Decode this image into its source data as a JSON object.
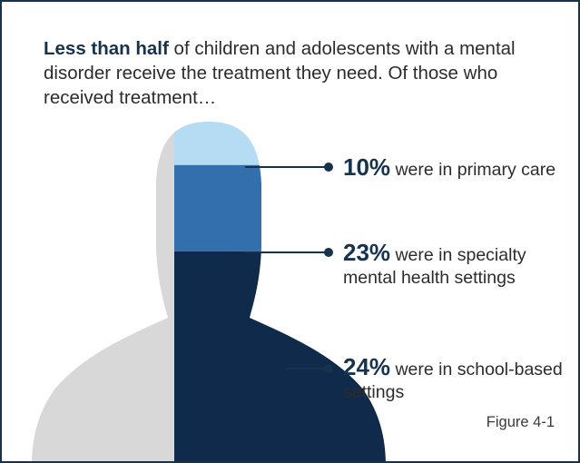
{
  "intro": {
    "bold": "Less than half",
    "rest": " of children and adolescents with a mental disorder receive the treatment they need. Of those who received treatment…"
  },
  "figure_label": "Figure 4-1",
  "colors": {
    "frame": "#17324d",
    "silhouette_gray": "#d8d8d8",
    "primary_care": "#b5dcf2",
    "specialty": "#336fad",
    "school": "#0f2a4a"
  },
  "chart_data": {
    "type": "pictograph",
    "title": "",
    "categories": [
      "primary care",
      "specialty mental health settings",
      "school-based settings"
    ],
    "values": [
      10,
      23,
      24
    ],
    "unit": "%",
    "labels": [
      {
        "value": "10%",
        "text": " were in primary care"
      },
      {
        "value": "23%",
        "text": " were in specialty mental health settings"
      },
      {
        "value": "24%",
        "text": " were in school-based settings"
      }
    ]
  }
}
